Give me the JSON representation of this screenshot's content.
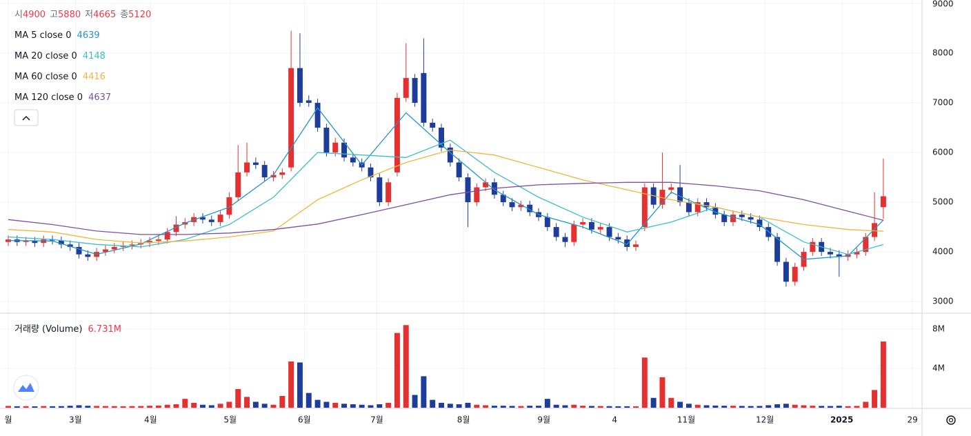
{
  "chart_data": {
    "type": "candlestick",
    "up_color": "#e5302f",
    "down_color": "#1e3d9a",
    "ylim": [
      2780,
      9070
    ],
    "yticks": [
      3000,
      4000,
      5000,
      6000,
      7000,
      8000,
      9000
    ],
    "xlim": [
      -0.31,
      103.3
    ],
    "xticks": [
      {
        "value": 0,
        "label": "월"
      },
      {
        "value": 7.6,
        "label": "3월"
      },
      {
        "value": 16.1,
        "label": "4월"
      },
      {
        "value": 25.1,
        "label": "5월"
      },
      {
        "value": 33.5,
        "label": "6월"
      },
      {
        "value": 41.7,
        "label": "7월"
      },
      {
        "value": 51.5,
        "label": "8월"
      },
      {
        "value": 60.6,
        "label": "9월"
      },
      {
        "value": 68.6,
        "label": "4"
      },
      {
        "value": 76.7,
        "label": "11월"
      },
      {
        "value": 85.6,
        "label": "12월"
      },
      {
        "value": 94.3,
        "label": "2025"
      },
      {
        "value": 102.3,
        "label": "29"
      }
    ],
    "grid": true,
    "ohlc_legend": [
      {
        "label": "시",
        "value": 4900
      },
      {
        "label": "고",
        "value": 5880
      },
      {
        "label": "저",
        "value": 4665
      },
      {
        "label": "종",
        "value": 5120
      }
    ],
    "open": [
      4200,
      4250,
      4200,
      4220,
      4180,
      4250,
      4230,
      4150,
      4100,
      3950,
      3900,
      4000,
      4050,
      4100,
      4130,
      4150,
      4180,
      4220,
      4250,
      4400,
      4550,
      4600,
      4700,
      4650,
      4600,
      4750,
      5100,
      5600,
      5800,
      5750,
      5500,
      5550,
      5700,
      7700,
      7050,
      7000,
      6500,
      6000,
      6200,
      5900,
      5800,
      5700,
      5500,
      5000,
      5600,
      7100,
      7500,
      7600,
      6600,
      6500,
      6100,
      5800,
      5500,
      5000,
      5300,
      5400,
      5150,
      5000,
      4900,
      4950,
      4800,
      4700,
      4500,
      4300,
      4200,
      4550,
      4600,
      4450,
      4500,
      4300,
      4250,
      4100,
      4500,
      5300,
      4950,
      5250,
      5300,
      5000,
      4800,
      5000,
      4900,
      4750,
      4600,
      4750,
      4700,
      4650,
      4500,
      4300,
      3800,
      3400,
      3700,
      4000,
      4200,
      4000,
      3950,
      3900,
      3950,
      4000,
      4300,
      4900
    ],
    "high": [
      4330,
      4330,
      4300,
      4300,
      4330,
      4330,
      4310,
      4230,
      4180,
      4030,
      4080,
      4130,
      4180,
      4210,
      4230,
      4260,
      4300,
      4330,
      4480,
      4720,
      4680,
      4780,
      4780,
      4730,
      4830,
      5200,
      6150,
      6200,
      5900,
      5830,
      5630,
      5680,
      8450,
      8400,
      7150,
      7080,
      6580,
      6300,
      6280,
      5980,
      5880,
      5780,
      5580,
      5480,
      7200,
      8200,
      7580,
      8300,
      6680,
      6580,
      6180,
      5880,
      5580,
      5380,
      5480,
      5480,
      5230,
      5080,
      5030,
      5030,
      4880,
      4780,
      4580,
      4380,
      4630,
      4680,
      4680,
      4580,
      4580,
      4380,
      4330,
      4230,
      5380,
      5380,
      6000,
      5380,
      5750,
      5080,
      5080,
      5080,
      4980,
      4830,
      4830,
      4830,
      4780,
      4730,
      4580,
      4380,
      3880,
      3780,
      4080,
      4280,
      4280,
      4080,
      4030,
      4030,
      4080,
      4380,
      5200,
      5880
    ],
    "low": [
      4120,
      4120,
      4120,
      4100,
      4100,
      4150,
      4070,
      4020,
      3870,
      3820,
      3820,
      3920,
      3970,
      4020,
      4050,
      4070,
      4100,
      4140,
      4170,
      4320,
      4470,
      4520,
      4570,
      4520,
      4520,
      4670,
      5020,
      5520,
      5670,
      5420,
      5420,
      5470,
      5620,
      6920,
      6920,
      6420,
      5920,
      5920,
      5820,
      5720,
      5620,
      5420,
      4920,
      4920,
      5520,
      7020,
      6920,
      6520,
      6420,
      6020,
      5720,
      5420,
      4500,
      4920,
      5220,
      5070,
      4920,
      4820,
      4820,
      4720,
      4620,
      4420,
      4220,
      4100,
      4120,
      4470,
      4370,
      4370,
      4220,
      4170,
      4020,
      4020,
      4420,
      4870,
      4870,
      5170,
      4920,
      4720,
      4720,
      4820,
      4670,
      4520,
      4520,
      4620,
      4570,
      4420,
      4220,
      3720,
      3300,
      3320,
      3620,
      3920,
      3920,
      3870,
      3500,
      3820,
      3870,
      3920,
      4220,
      4665
    ],
    "close": [
      4250,
      4200,
      4220,
      4180,
      4250,
      4230,
      4150,
      4100,
      3950,
      3900,
      4000,
      4050,
      4100,
      4130,
      4150,
      4180,
      4220,
      4250,
      4400,
      4550,
      4600,
      4700,
      4650,
      4600,
      4750,
      5100,
      5600,
      5800,
      5750,
      5500,
      5550,
      5600,
      7700,
      7000,
      7000,
      6500,
      6000,
      6200,
      5900,
      5800,
      5700,
      5500,
      5000,
      5400,
      7100,
      7500,
      7000,
      6600,
      6500,
      6100,
      5800,
      5500,
      5000,
      5300,
      5400,
      5150,
      5000,
      4900,
      4950,
      4800,
      4700,
      4500,
      4300,
      4200,
      4550,
      4600,
      4450,
      4500,
      4300,
      4250,
      4100,
      4150,
      5300,
      4950,
      5250,
      5300,
      5000,
      4800,
      5000,
      4900,
      4750,
      4600,
      4750,
      4700,
      4650,
      4500,
      4300,
      3800,
      3400,
      3700,
      4000,
      4200,
      4000,
      3950,
      3900,
      3950,
      4000,
      4300,
      4580,
      5120
    ],
    "overlays": {
      "x": [
        0,
        5,
        10,
        15,
        20,
        25,
        30,
        35,
        40,
        45,
        50,
        55,
        60,
        65,
        70,
        75,
        80,
        85,
        90,
        95,
        99
      ],
      "series": [
        {
          "name": "MA 5 close 0",
          "color": "#2196c9",
          "last": 4639,
          "values": [
            4230,
            4220,
            3950,
            4160,
            4580,
            4900,
            5550,
            6900,
            5750,
            6800,
            6000,
            5250,
            4750,
            4500,
            4150,
            5200,
            4800,
            4550,
            3850,
            3920,
            4639
          ]
        },
        {
          "name": "MA 20 close 0",
          "color": "#3bbcd0",
          "last": 4148,
          "values": [
            4300,
            4250,
            4150,
            4100,
            4250,
            4550,
            5100,
            6000,
            5950,
            5900,
            6250,
            5600,
            5100,
            4700,
            4400,
            4600,
            4900,
            4700,
            4200,
            3950,
            4148
          ]
        },
        {
          "name": "MA 60 close 0",
          "color": "#f0b63c",
          "last": 4416,
          "values": [
            4450,
            4400,
            4250,
            4180,
            4220,
            4300,
            4420,
            5050,
            5450,
            5800,
            6050,
            5950,
            5700,
            5450,
            5250,
            5050,
            4900,
            4700,
            4550,
            4450,
            4416
          ]
        },
        {
          "name": "MA 120 close 0",
          "color": "#7b4fa5",
          "last": 4637,
          "values": [
            4650,
            4550,
            4420,
            4350,
            4350,
            4380,
            4450,
            4560,
            4750,
            4950,
            5150,
            5280,
            5350,
            5380,
            5400,
            5400,
            5330,
            5230,
            5050,
            4820,
            4637
          ]
        }
      ]
    },
    "volume": {
      "name": "거래량 (Volume)",
      "value": 6731000,
      "value_label": "6.731M",
      "ylim": [
        0,
        9540000
      ],
      "yticks": [
        {
          "value": 4000000,
          "label": "4M"
        },
        {
          "value": 8000000,
          "label": "8M"
        }
      ],
      "values": [
        180000,
        150000,
        160000,
        140000,
        170000,
        150000,
        160000,
        200000,
        250000,
        200000,
        180000,
        170000,
        160000,
        150000,
        160000,
        170000,
        200000,
        220000,
        300000,
        350000,
        900000,
        500000,
        300000,
        250000,
        400000,
        600000,
        1900000,
        1100000,
        600000,
        400000,
        300000,
        1200000,
        4700000,
        4600000,
        1500000,
        800000,
        600000,
        500000,
        400000,
        350000,
        300000,
        250000,
        350000,
        500000,
        7600000,
        8400000,
        1300000,
        3200000,
        800000,
        500000,
        400000,
        350000,
        500000,
        300000,
        250000,
        200000,
        200000,
        180000,
        170000,
        200000,
        200000,
        900000,
        300000,
        250000,
        300000,
        200000,
        180000,
        170000,
        160000,
        150000,
        150000,
        140000,
        5100000,
        1000000,
        3100000,
        1000000,
        600000,
        400000,
        300000,
        250000,
        220000,
        200000,
        200000,
        180000,
        170000,
        180000,
        250000,
        350000,
        400000,
        300000,
        250000,
        200000,
        180000,
        170000,
        200000,
        160000,
        180000,
        600000,
        1800000,
        6731000
      ]
    }
  }
}
